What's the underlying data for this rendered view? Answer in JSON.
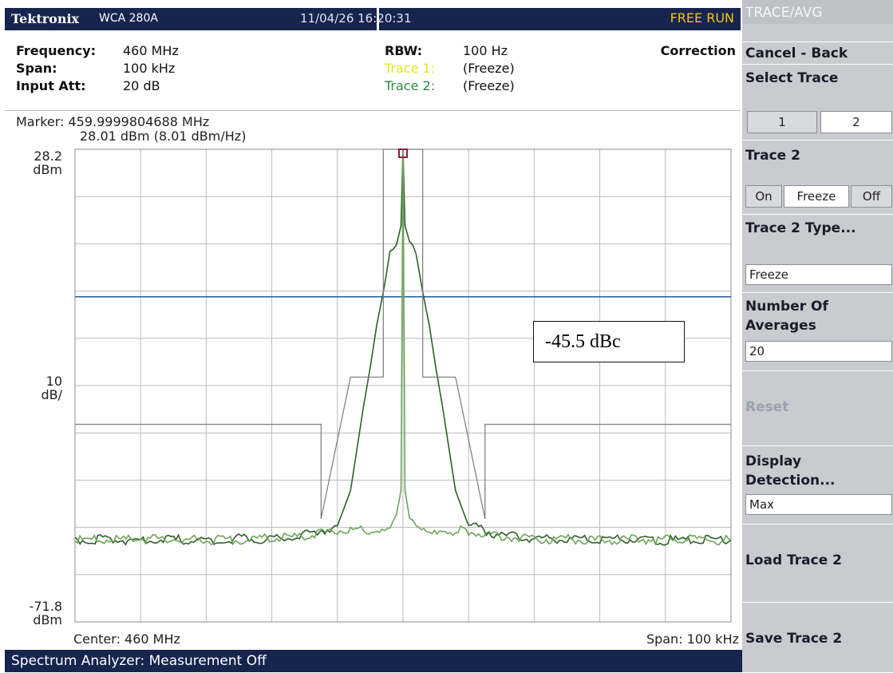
{
  "header": {
    "brand": "Tektronix",
    "model": "WCA 280A",
    "timestamp": "11/04/26 16:20:31",
    "run_mode": "FREE RUN"
  },
  "settings": {
    "frequency_label": "Frequency:",
    "frequency_value": "460 MHz",
    "span_label": "Span:",
    "span_value": "100 kHz",
    "input_att_label": "Input Att:",
    "input_att_value": "20 dB",
    "rbw_label": "RBW:",
    "rbw_value": "100 Hz",
    "trace1_label": "Trace 1:",
    "trace1_value": "(Freeze)",
    "trace2_label": "Trace 2:",
    "trace2_value": "(Freeze)",
    "correction": "Correction"
  },
  "plot": {
    "marker_line1": "Marker: 459.9999804688 MHz",
    "marker_line2": "28.01 dBm (8.01 dBm/Hz)",
    "y_top_value": "28.2",
    "y_top_unit": "dBm",
    "y_scale_value": "10",
    "y_scale_unit": "dB/",
    "y_bottom_value": "-71.8",
    "y_bottom_unit": "dBm",
    "center_text": "Center: 460 MHz",
    "span_text": "Span: 100 kHz",
    "annotation": "-45.5 dBc",
    "colors": {
      "trace_dark": "#2f5f2a",
      "trace_light": "#6fa55a",
      "reference_line": "#1f5e96",
      "mask": "#7a7a7a",
      "grid": "#b9b9b9",
      "marker": "#8b1f3a"
    }
  },
  "chart_data": {
    "type": "line",
    "title": "",
    "xlabel": "",
    "ylabel": "",
    "x_center_mhz": 460,
    "x_span_khz": 100,
    "xlim": [
      -50,
      50
    ],
    "ylim": [
      -71.8,
      28.2
    ],
    "grid": true,
    "reference_line_dbm": -3,
    "series": [
      {
        "x": [
          -50,
          -45,
          -40,
          -35,
          -30,
          -25,
          -20,
          -15,
          -10,
          -8,
          -7,
          -6,
          -5,
          -4,
          -3,
          -2,
          -1,
          -0.3,
          0,
          0.3,
          1,
          2,
          3,
          4,
          5,
          6,
          7,
          8,
          10,
          15,
          20,
          25,
          30,
          35,
          40,
          45,
          50
        ],
        "y": [
          -54.5,
          -54.3,
          -54.6,
          -54.4,
          -54.5,
          -54.2,
          -54.3,
          -53.5,
          -51.5,
          -44,
          -35,
          -26,
          -18,
          -9,
          -2,
          6,
          8,
          12,
          28,
          12,
          8,
          6,
          -2,
          -9,
          -18,
          -26,
          -35,
          -44,
          -51.5,
          -53.5,
          -54.3,
          -54.2,
          -54.5,
          -54.4,
          -54.6,
          -54.3,
          -54.5
        ]
      },
      {
        "x": [
          -50,
          -40,
          -30,
          -20,
          -15,
          -10,
          -6,
          -4,
          -2,
          -1,
          -0.3,
          0,
          0.3,
          1,
          2,
          4,
          6,
          10,
          15,
          20,
          30,
          40,
          50
        ],
        "y": [
          -54.5,
          -54.3,
          -54.5,
          -54.2,
          -53.6,
          -52.5,
          -52.5,
          -52.2,
          -51,
          -49,
          -44,
          28,
          -44,
          -49,
          -51,
          -52.2,
          -52.5,
          -52.5,
          -53.6,
          -54.2,
          -54.5,
          -54.3,
          -54.5
        ]
      },
      {
        "x": [
          -50,
          -12.5,
          -12.5,
          -8,
          -3,
          -3,
          3,
          3,
          8,
          12.5,
          12.5,
          50
        ],
        "y": [
          -30,
          -30,
          -50,
          -20,
          -20,
          28.2,
          28.2,
          -20,
          -20,
          -50,
          -30,
          -30
        ]
      }
    ]
  },
  "menu": {
    "title": "TRACE/AVG",
    "cancel_back": "Cancel - Back",
    "select_trace": "Select Trace",
    "select_options": [
      "1",
      "2"
    ],
    "trace2": "Trace 2",
    "trace2_options": [
      "On",
      "Freeze",
      "Off"
    ],
    "trace2_type": "Trace 2 Type...",
    "trace2_type_value": "Freeze",
    "number_of_averages": "Number Of Averages",
    "number_of_averages_line1": "Number Of",
    "number_of_averages_line2": "Averages",
    "averages_value": "20",
    "reset": "Reset",
    "display_detection_line1": "Display",
    "display_detection_line2": "Detection...",
    "detection_value": "Max",
    "load_trace": "Load Trace 2",
    "save_trace": "Save Trace 2"
  },
  "status": {
    "text": "Spectrum Analyzer: Measurement Off"
  }
}
